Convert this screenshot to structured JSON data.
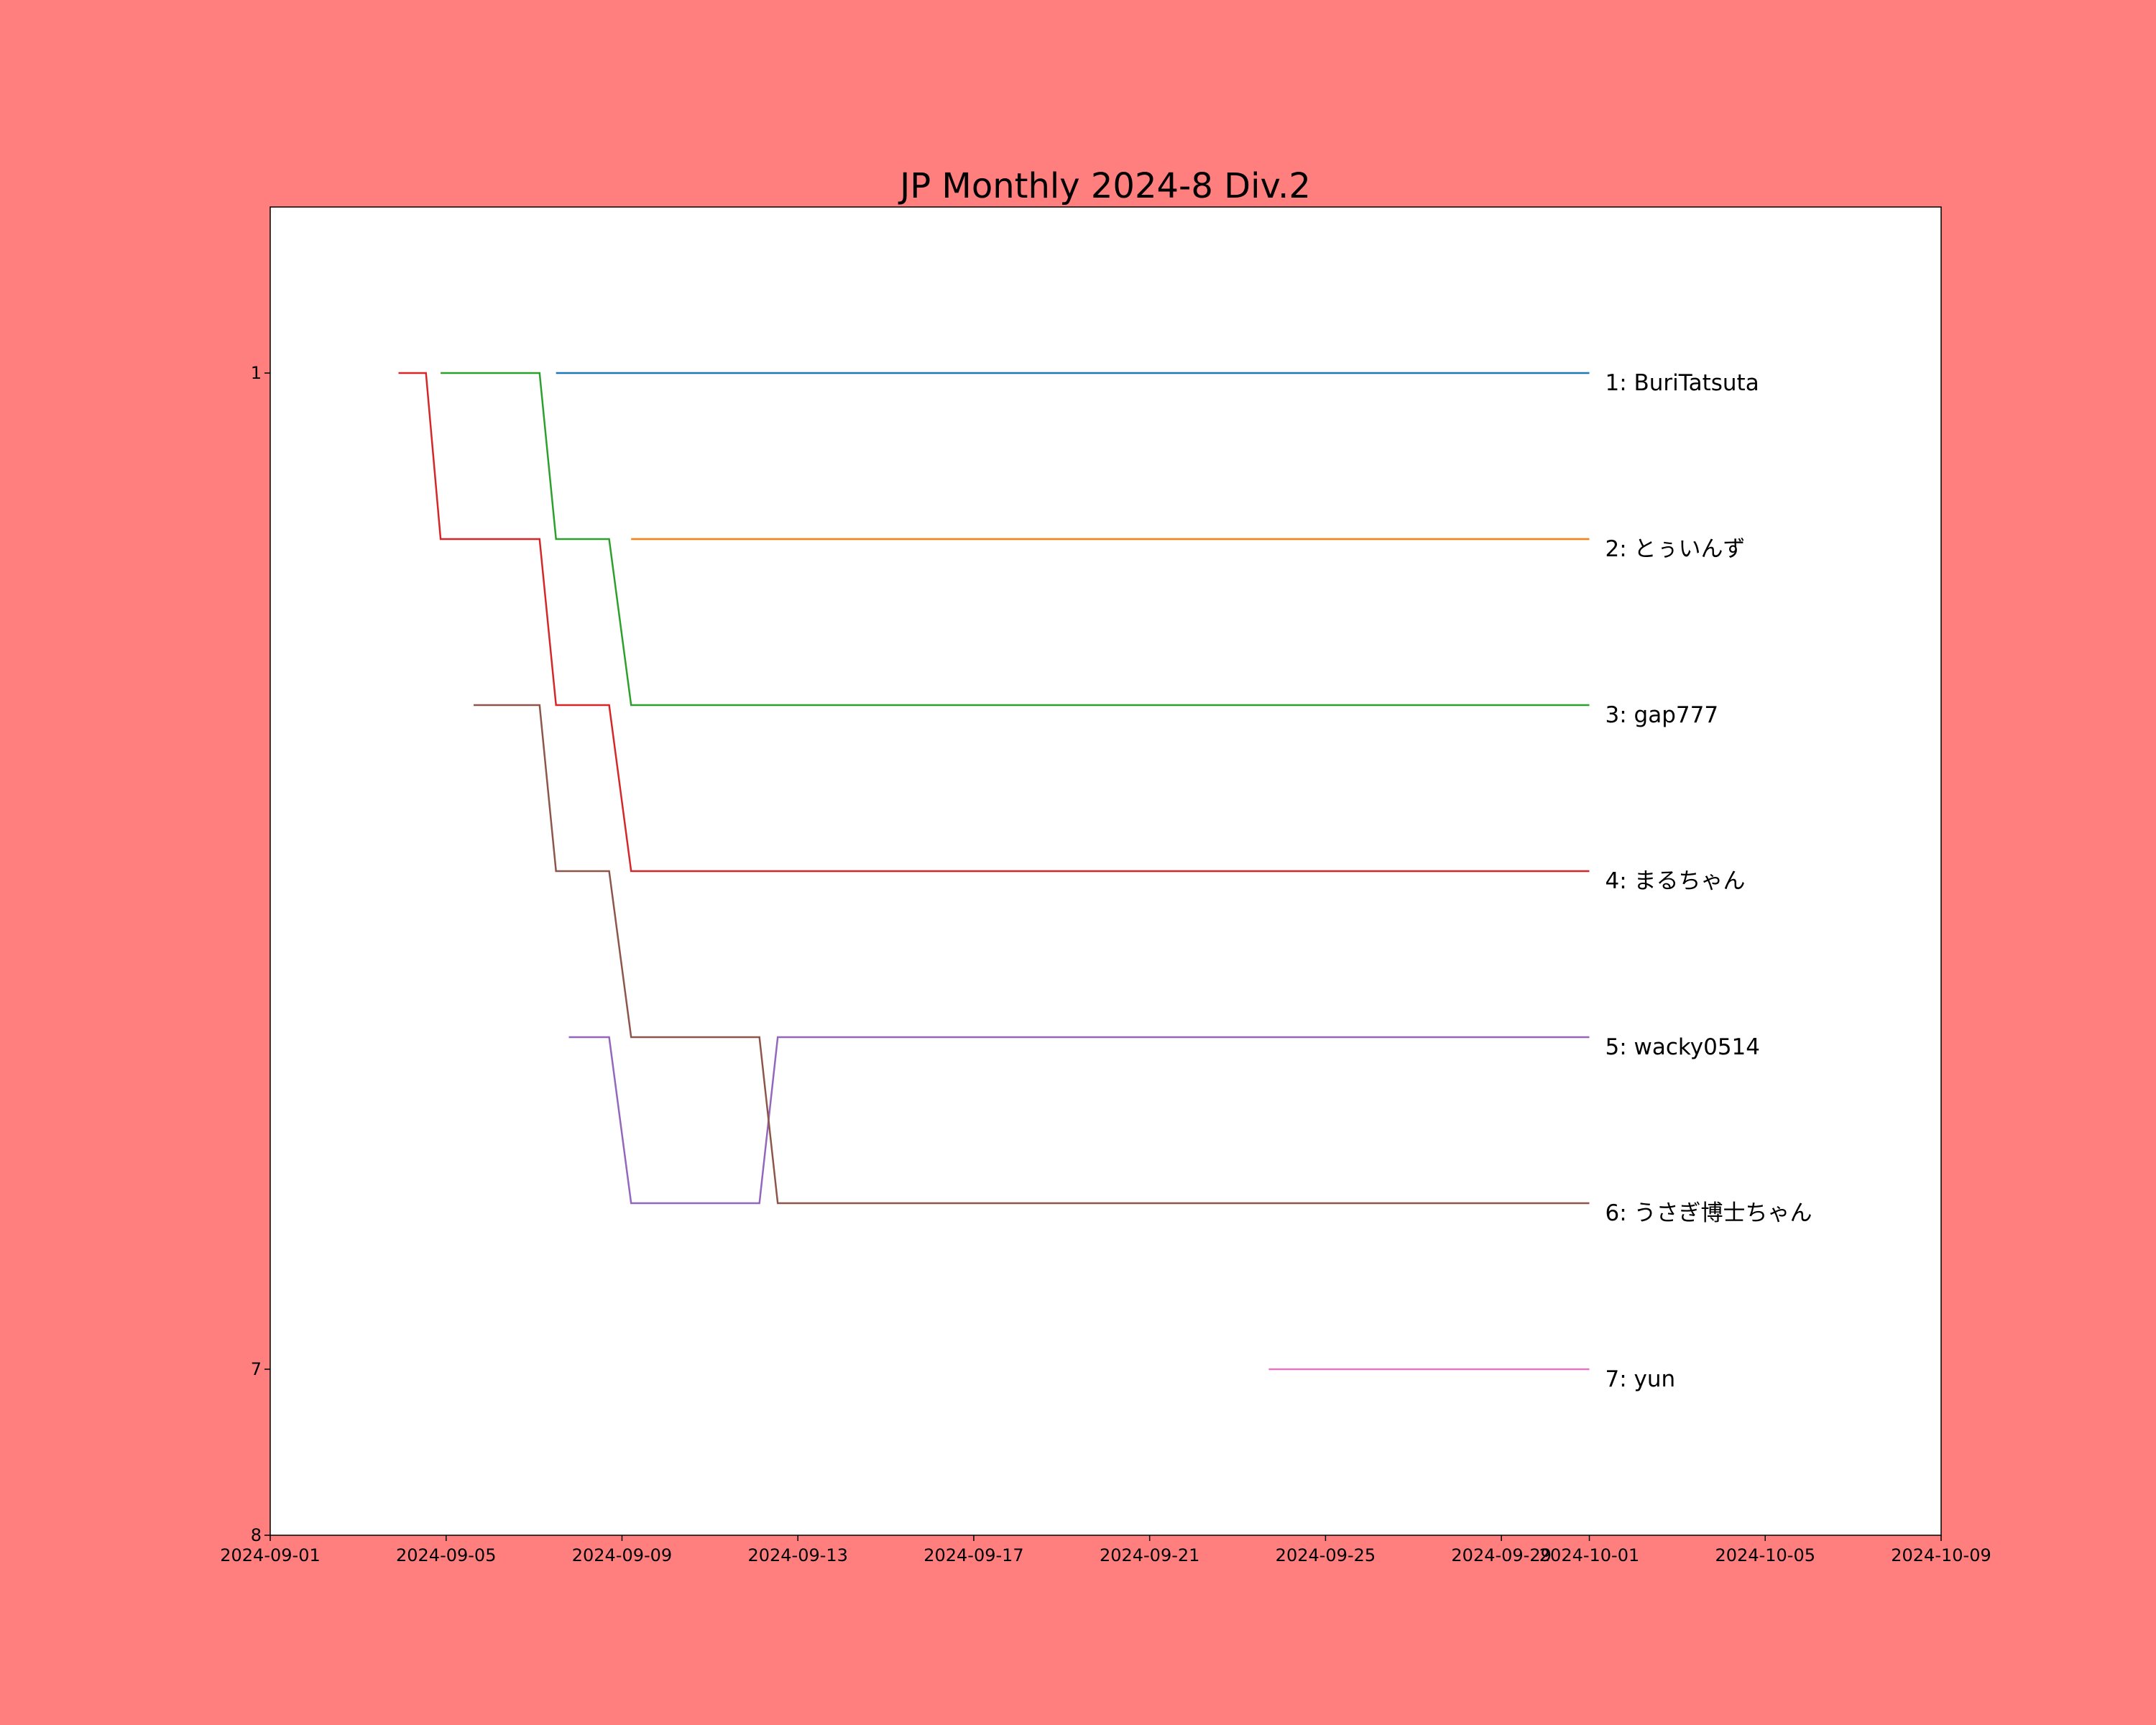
{
  "chart_data": {
    "type": "line",
    "title": "JP Monthly 2024-8 Div.2",
    "xlabel": "",
    "ylabel": "",
    "x_axis_type": "date",
    "xlim": [
      "2024-09-01",
      "2024-10-09"
    ],
    "ylim": [
      8,
      0
    ],
    "y_inverted": true,
    "grid": false,
    "legend": "end-of-line labels",
    "x_ticks": [
      "2024-09-01",
      "2024-09-05",
      "2024-09-09",
      "2024-09-13",
      "2024-09-17",
      "2024-09-21",
      "2024-09-25",
      "2024-09-29",
      "2024-10-01",
      "2024-10-05",
      "2024-10-09"
    ],
    "y_ticks": [
      {
        "value": 1,
        "label": "1"
      },
      {
        "value": 7,
        "label": "7"
      },
      {
        "value": 8,
        "label": "8"
      }
    ],
    "series": [
      {
        "name": "1: BuriTatsuta",
        "color": "#1f77b4",
        "points": [
          [
            "2024-09-07 12:00",
            1
          ],
          [
            "2024-10-01 00:00",
            1
          ]
        ]
      },
      {
        "name": "2: とぅいんず",
        "color": "#ff7f0e",
        "points": [
          [
            "2024-09-09 05:00",
            2
          ],
          [
            "2024-10-01 00:00",
            2
          ]
        ]
      },
      {
        "name": "3: gap777",
        "color": "#2ca02c",
        "points": [
          [
            "2024-09-04 21:00",
            1
          ],
          [
            "2024-09-07 03:00",
            1
          ],
          [
            "2024-09-07 12:00",
            2
          ],
          [
            "2024-09-08 17:00",
            2
          ],
          [
            "2024-09-09 05:00",
            3
          ],
          [
            "2024-10-01 00:00",
            3
          ]
        ]
      },
      {
        "name": "4: まるちゃん",
        "color": "#d62728",
        "points": [
          [
            "2024-09-03 22:00",
            1
          ],
          [
            "2024-09-04 13:00",
            1
          ],
          [
            "2024-09-04 21:00",
            2
          ],
          [
            "2024-09-07 03:00",
            2
          ],
          [
            "2024-09-07 12:00",
            3
          ],
          [
            "2024-09-08 17:00",
            3
          ],
          [
            "2024-09-09 05:00",
            4
          ],
          [
            "2024-10-01 00:00",
            4
          ]
        ]
      },
      {
        "name": "5: wacky0514",
        "color": "#9467bd",
        "points": [
          [
            "2024-09-07 19:00",
            5
          ],
          [
            "2024-09-08 17:00",
            5
          ],
          [
            "2024-09-09 05:00",
            6
          ],
          [
            "2024-09-12 03:00",
            6
          ],
          [
            "2024-09-12 13:00",
            5
          ],
          [
            "2024-10-01 00:00",
            5
          ]
        ]
      },
      {
        "name": "6: うさぎ博士ちゃん",
        "color": "#8c564b",
        "points": [
          [
            "2024-09-05 15:00",
            3
          ],
          [
            "2024-09-07 03:00",
            3
          ],
          [
            "2024-09-07 12:00",
            4
          ],
          [
            "2024-09-08 17:00",
            4
          ],
          [
            "2024-09-09 05:00",
            5
          ],
          [
            "2024-09-12 03:00",
            5
          ],
          [
            "2024-09-12 13:00",
            6
          ],
          [
            "2024-10-01 00:00",
            6
          ]
        ]
      },
      {
        "name": "7: yun",
        "color": "#e377c2",
        "points": [
          [
            "2024-09-23 17:00",
            7
          ],
          [
            "2024-10-01 00:00",
            7
          ]
        ]
      }
    ]
  }
}
